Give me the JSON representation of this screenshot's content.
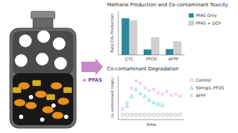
{
  "chart_data": [
    {
      "type": "bar",
      "title": "Methane Production and Co-contaminant Toxicity",
      "y_label": "Rate CH₄ Production",
      "annotations": [
        "+ PFAS"
      ],
      "categories": [
        "CTL",
        "PFOS",
        "AFFF"
      ],
      "series": [
        {
          "name": "PFAS Only",
          "color": "#2a8a9c",
          "values": [
            0.88,
            0.13,
            0.14
          ]
        },
        {
          "name": "PFAS + DCP",
          "color": "#d0d0d0",
          "values": [
            0.82,
            0.42,
            0.32
          ]
        }
      ],
      "ylim": [
        0,
        1.05
      ],
      "yticks": [],
      "tick_labels": "x",
      "grid": false,
      "legend": "right"
    },
    {
      "type": "scatter",
      "title": "Co-contaminant Degradation",
      "x_label": "time",
      "y_label": "Co-contaminant (mg/L)",
      "series": [
        {
          "name": "Control",
          "color": "#999999",
          "marker": "circle",
          "x": [
            0,
            1,
            2,
            3,
            4,
            5,
            6,
            7,
            8,
            9,
            10,
            11,
            12,
            13
          ],
          "values": [
            0,
            0,
            0,
            0,
            0,
            0,
            0,
            0,
            0,
            0,
            0,
            0,
            0,
            0
          ]
        },
        {
          "name": "50mg/L PFOS",
          "color": "#40c0d0",
          "marker": "triangle",
          "x": [
            1,
            2,
            3,
            4,
            5,
            6,
            7,
            8,
            9
          ],
          "values": [
            0.18,
            0.38,
            0.52,
            0.44,
            0.38,
            0.3,
            0.25,
            0.22,
            0.2
          ]
        },
        {
          "name": "AFFF",
          "color": "#cc88cc",
          "marker": "x",
          "x": [
            0,
            1,
            2,
            3,
            4,
            5,
            6,
            7,
            8,
            9,
            10,
            11,
            12,
            13
          ],
          "values": [
            0.12,
            0.25,
            0.55,
            0.7,
            0.65,
            0.55,
            0.5,
            0.52,
            0.45,
            0.42,
            0.48,
            0.4,
            0.42,
            0.38
          ]
        }
      ],
      "xlim": [
        -1,
        14
      ],
      "ylim": [
        -0.1,
        0.8
      ],
      "xticks": [],
      "yticks": [],
      "tick_labels": false,
      "grid": false,
      "legend": "right"
    }
  ]
}
